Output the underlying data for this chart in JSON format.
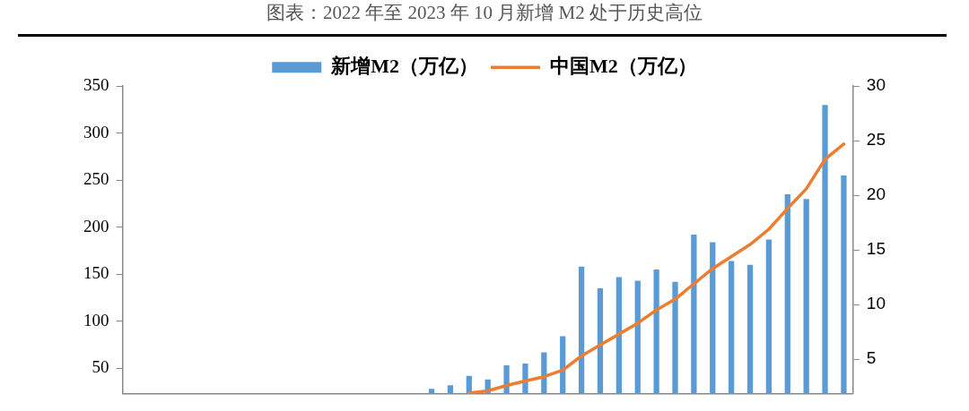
{
  "chart_data": {
    "type": "bar",
    "title": "图表：2022 年至 2023 年 10 月新增 M2 处于历史高位",
    "categories": [
      null,
      null,
      null,
      null,
      null,
      null,
      null,
      null,
      null,
      null,
      null,
      null,
      null,
      null,
      null,
      null,
      null,
      null,
      null,
      null,
      null,
      null,
      null,
      null,
      null,
      null,
      null,
      null,
      null,
      null,
      null,
      null,
      null,
      null,
      null,
      null,
      null,
      null,
      null
    ],
    "series": [
      {
        "name": "新增M2（万亿）",
        "type": "bar",
        "color": "#5b9bd5",
        "values": [
          null,
          null,
          null,
          null,
          null,
          null,
          null,
          null,
          null,
          null,
          null,
          null,
          null,
          null,
          null,
          null,
          28,
          32,
          42,
          38,
          53,
          55,
          67,
          84,
          158,
          135,
          147,
          143,
          155,
          142,
          192,
          184,
          164,
          160,
          187,
          235,
          230,
          330,
          255
        ]
      },
      {
        "name": "中国M2（万亿）",
        "type": "line",
        "axis": "y2",
        "color": "#ed7d31",
        "values": [
          null,
          null,
          null,
          null,
          null,
          null,
          null,
          null,
          null,
          null,
          null,
          null,
          null,
          null,
          null,
          null,
          null,
          null,
          1.9,
          2.1,
          2.6,
          3,
          3.4,
          4,
          5.3,
          6.3,
          7.3,
          8.3,
          9.5,
          10.5,
          11.9,
          13.3,
          14.4,
          15.5,
          16.9,
          18.8,
          20.6,
          23.3,
          24.7
        ]
      }
    ],
    "ylim": [
      23,
      350
    ],
    "yticks": [
      50,
      100,
      150,
      200,
      250,
      300,
      350
    ],
    "y2lim": [
      1.85,
      30
    ],
    "y2ticks": [
      5,
      10,
      15,
      20,
      25,
      30
    ],
    "legend": "top",
    "marker": "none",
    "line_style": "solid"
  }
}
